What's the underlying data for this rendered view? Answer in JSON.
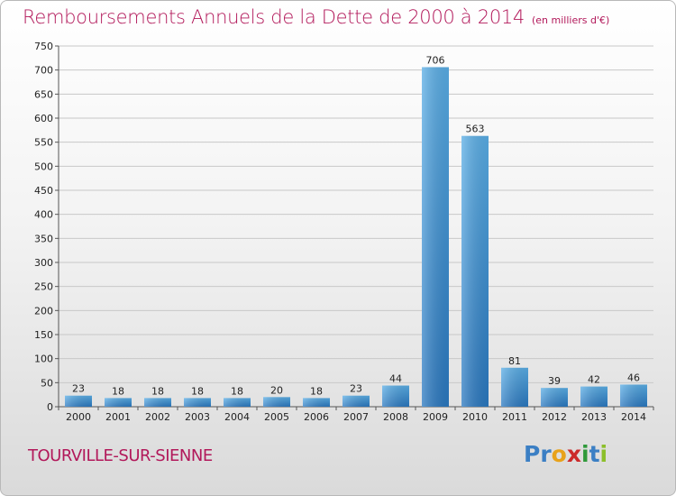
{
  "chart_data": {
    "type": "bar",
    "title": "Remboursements Annuels de la Dette de 2000 à 2014",
    "subtitle": "(en milliers d'€)",
    "categories": [
      "2000",
      "2001",
      "2002",
      "2003",
      "2004",
      "2005",
      "2006",
      "2007",
      "2008",
      "2009",
      "2010",
      "2011",
      "2012",
      "2013",
      "2014"
    ],
    "values": [
      23,
      18,
      18,
      18,
      18,
      20,
      18,
      23,
      44,
      706,
      563,
      81,
      39,
      42,
      46
    ],
    "ylim": [
      0,
      750
    ],
    "yticks": [
      0,
      50,
      100,
      150,
      200,
      250,
      300,
      350,
      400,
      450,
      500,
      550,
      600,
      650,
      700,
      750
    ],
    "grid": true,
    "bar_color": "#3a8fd6"
  },
  "commune": "TOURVILLE-SUR-SIENNE",
  "logo": {
    "letters": [
      "P",
      "r",
      "o",
      "x",
      "i",
      "t",
      "i"
    ],
    "colors": [
      "#3b7fc4",
      "#3b7fc4",
      "#e8a21a",
      "#cc2a2a",
      "#2f9a3a",
      "#3b7fc4",
      "#8cbf2a"
    ]
  }
}
